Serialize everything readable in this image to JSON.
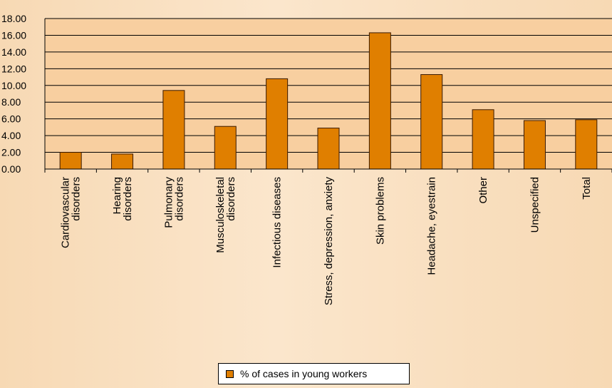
{
  "colors": {
    "plot_background": "#f8cfa0",
    "bar_fill": "#e07f00",
    "bar_stroke": "#3a1a00",
    "grid": "#000000"
  },
  "chart_data": {
    "type": "bar",
    "categories": [
      "Cardiovascular disorders",
      "Hearing disorders",
      "Pulmonary disorders",
      "Musculoskeletal disorders",
      "Infectious diseases",
      "Stress, depression, anxiety",
      "Skin problems",
      "Headache, eyestrain",
      "Other",
      "Unspecified",
      "Total"
    ],
    "category_label_lines": [
      [
        "Cardiovascular",
        "disorders"
      ],
      [
        "Hearing",
        "disorders"
      ],
      [
        "Pulmonary",
        "disorders"
      ],
      [
        "Musculoskeletal",
        "disorders"
      ],
      [
        "Infectious diseases"
      ],
      [
        "Stress, depression, anxiety"
      ],
      [
        "Skin problems"
      ],
      [
        "Headache, eyestrain"
      ],
      [
        "Other"
      ],
      [
        "Unspecified"
      ],
      [
        "Total"
      ]
    ],
    "series": [
      {
        "name": "% of cases in young workers",
        "values": [
          2.0,
          1.8,
          9.4,
          5.1,
          10.8,
          4.9,
          16.3,
          11.3,
          7.1,
          5.8,
          5.9
        ]
      }
    ],
    "yticks": [
      "0.00",
      "2.00",
      "4.00",
      "6.00",
      "8.00",
      "10.00",
      "12.00",
      "14.00",
      "16.00",
      "18.00"
    ],
    "ylim": [
      0,
      18
    ],
    "grid": true,
    "legend_position": "bottom-center",
    "title": "",
    "xlabel": "",
    "ylabel": ""
  },
  "legend": {
    "label": "% of cases in young workers"
  }
}
